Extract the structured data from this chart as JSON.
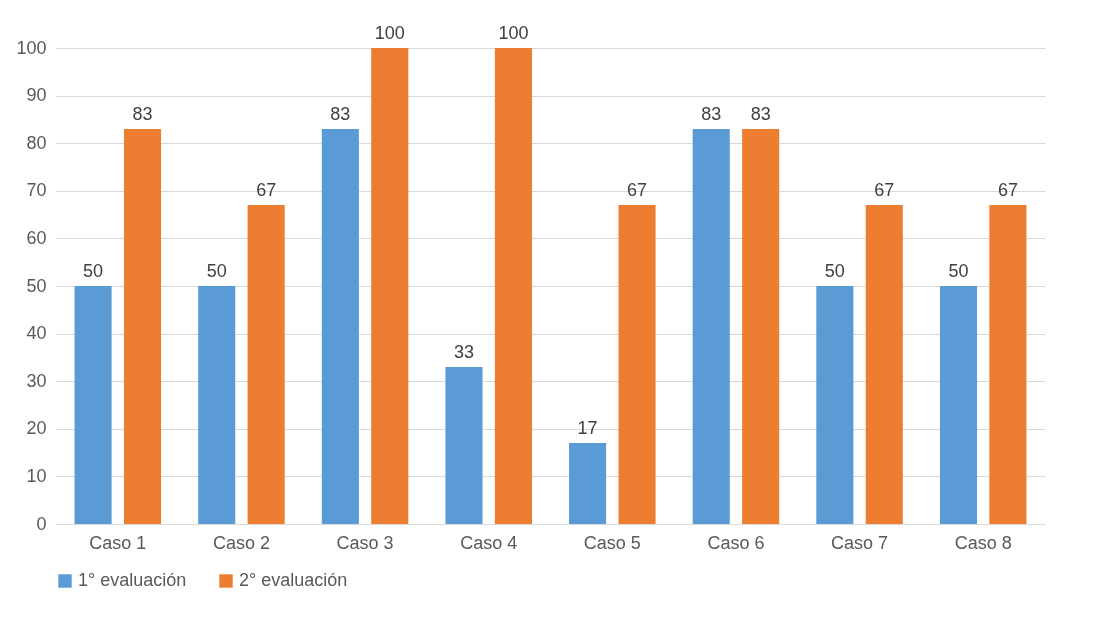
{
  "chart_data": {
    "type": "bar",
    "categories": [
      "Caso 1",
      "Caso 2",
      "Caso 3",
      "Caso 4",
      "Caso 5",
      "Caso 6",
      "Caso 7",
      "Caso 8"
    ],
    "series": [
      {
        "name": "1° evaluación",
        "color": "#5b9bd5",
        "values": [
          50,
          50,
          83,
          33,
          17,
          83,
          50,
          50
        ]
      },
      {
        "name": "2° evaluación",
        "color": "#ed7d31",
        "values": [
          83,
          67,
          100,
          100,
          67,
          83,
          67,
          67
        ]
      }
    ],
    "ylim": [
      0,
      100
    ],
    "yticks": [
      0,
      10,
      20,
      30,
      40,
      50,
      60,
      70,
      80,
      90,
      100
    ],
    "grid": "y",
    "legend": "bottom",
    "data_labels": true
  }
}
